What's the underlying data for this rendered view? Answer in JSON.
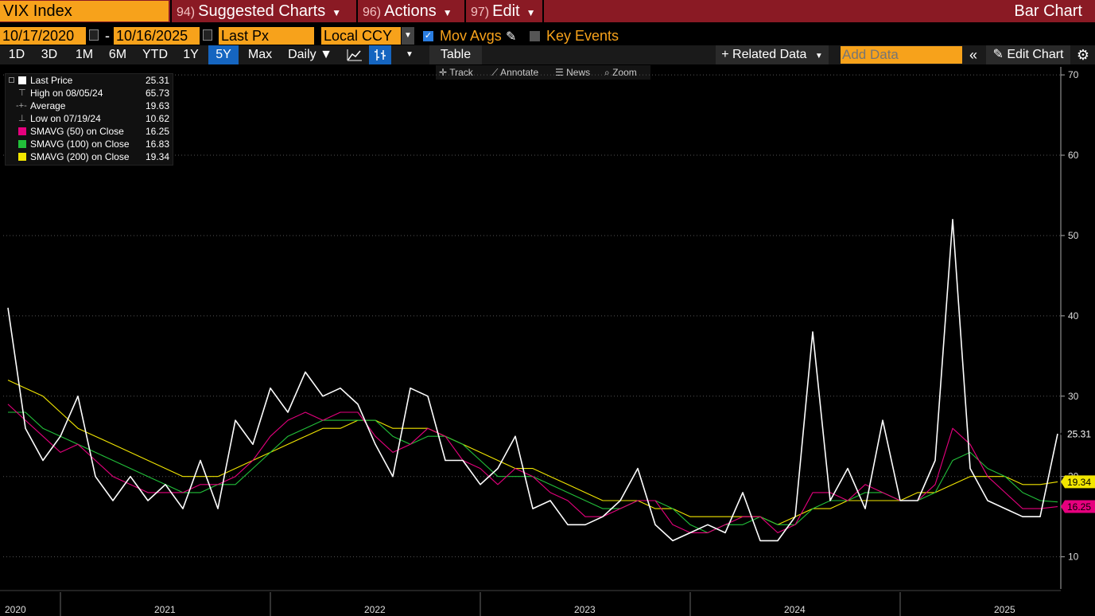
{
  "topbar": {
    "security": "VIX Index",
    "menus": [
      {
        "num": "94)",
        "label": "Suggested Charts"
      },
      {
        "num": "96)",
        "label": "Actions"
      },
      {
        "num": "97)",
        "label": "Edit"
      }
    ],
    "title": "Bar Chart"
  },
  "controls": {
    "start_date": "10/17/2020",
    "dash": "-",
    "end_date": "10/16/2025",
    "field": "Last Px",
    "currency": "Local CCY",
    "mov_avgs_label": "Mov Avgs",
    "key_events_label": "Key Events"
  },
  "toolbar": {
    "periods": [
      "1D",
      "3D",
      "1M",
      "6M",
      "YTD",
      "1Y",
      "5Y",
      "Max"
    ],
    "selected_period": "5Y",
    "frequency": "Daily ▼",
    "table_label": "Table",
    "related_data_label": "+ Related Data",
    "add_data_placeholder": "Add Data",
    "edit_chart_label": "Edit Chart"
  },
  "tools": [
    "Track",
    "Annotate",
    "News",
    "Zoom"
  ],
  "legend": [
    {
      "label": "Last Price",
      "value": "25.31",
      "color": "#ffffff"
    },
    {
      "label": "High on 08/05/24",
      "value": "65.73",
      "glyph": "⊤"
    },
    {
      "label": "Average",
      "value": "19.63",
      "glyph": "-+-"
    },
    {
      "label": "Low on 07/19/24",
      "value": "10.62",
      "glyph": "⊥"
    },
    {
      "label": "SMAVG (50)  on Close",
      "value": "16.25",
      "color": "#e6007e"
    },
    {
      "label": "SMAVG (100)  on Close",
      "value": "16.83",
      "color": "#22c03a"
    },
    {
      "label": "SMAVG (200)  on Close",
      "value": "19.34",
      "color": "#f2e600"
    }
  ],
  "chart_data": {
    "type": "line",
    "ylim": [
      6,
      71
    ],
    "yticks": [
      10,
      20,
      30,
      40,
      50,
      60,
      70
    ],
    "x_labels": [
      "2020",
      "2021",
      "2022",
      "2023",
      "2024",
      "2025"
    ],
    "last_value_tags": [
      {
        "value": 25.31,
        "label": "25.31",
        "color": "#ffffff"
      },
      {
        "value": 19.34,
        "label": "19.34",
        "color": "#f2e600"
      },
      {
        "value": 16.25,
        "label": "16.25",
        "color": "#e6007e"
      }
    ],
    "x": [
      "2020-10",
      "2020-11",
      "2020-12",
      "2021-01",
      "2021-02",
      "2021-03",
      "2021-04",
      "2021-05",
      "2021-06",
      "2021-07",
      "2021-08",
      "2021-09",
      "2021-10",
      "2021-11",
      "2021-12",
      "2022-01",
      "2022-02",
      "2022-03",
      "2022-04",
      "2022-05",
      "2022-06",
      "2022-07",
      "2022-08",
      "2022-09",
      "2022-10",
      "2022-11",
      "2022-12",
      "2023-01",
      "2023-02",
      "2023-03",
      "2023-04",
      "2023-05",
      "2023-06",
      "2023-07",
      "2023-08",
      "2023-09",
      "2023-10",
      "2023-11",
      "2023-12",
      "2024-01",
      "2024-02",
      "2024-03",
      "2024-04",
      "2024-05",
      "2024-06",
      "2024-07",
      "2024-08",
      "2024-09",
      "2024-10",
      "2024-11",
      "2024-12",
      "2025-01",
      "2025-02",
      "2025-03",
      "2025-04",
      "2025-05",
      "2025-06",
      "2025-07",
      "2025-08",
      "2025-09",
      "2025-10"
    ],
    "series": [
      {
        "name": "Last Price",
        "color": "#ffffff",
        "values": [
          41,
          26,
          22,
          25,
          30,
          20,
          17,
          20,
          17,
          19,
          16,
          22,
          16,
          27,
          24,
          31,
          28,
          33,
          30,
          31,
          29,
          24,
          20,
          31,
          30,
          22,
          22,
          19,
          21,
          25,
          16,
          17,
          14,
          14,
          15,
          17,
          21,
          14,
          12,
          13,
          14,
          13,
          18,
          12,
          12,
          15,
          38,
          17,
          21,
          16,
          27,
          17,
          17,
          22,
          52,
          21,
          17,
          16,
          15,
          15,
          25.31
        ]
      },
      {
        "name": "SMAVG (50)  on Close",
        "color": "#e6007e",
        "values": [
          29,
          27,
          25,
          23,
          24,
          22,
          20,
          19,
          18,
          18,
          18,
          19,
          19,
          20,
          22,
          25,
          27,
          28,
          27,
          28,
          28,
          25,
          23,
          24,
          26,
          25,
          22,
          21,
          19,
          21,
          20,
          18,
          17,
          15,
          15,
          16,
          17,
          17,
          14,
          13,
          13,
          14,
          15,
          15,
          13,
          14,
          18,
          18,
          17,
          19,
          18,
          17,
          17,
          19,
          26,
          24,
          20,
          18,
          16,
          16,
          16.25
        ]
      },
      {
        "name": "SMAVG (100)  on Close",
        "color": "#22c03a",
        "values": [
          28,
          28,
          26,
          25,
          24,
          23,
          22,
          21,
          20,
          19,
          18,
          18,
          19,
          19,
          21,
          23,
          25,
          26,
          27,
          27,
          27,
          27,
          25,
          24,
          25,
          25,
          24,
          22,
          20,
          20,
          20,
          19,
          18,
          17,
          16,
          16,
          17,
          17,
          16,
          14,
          13,
          14,
          14,
          15,
          14,
          14,
          16,
          17,
          17,
          18,
          18,
          17,
          17,
          18,
          22,
          23,
          21,
          20,
          18,
          17,
          16.83
        ]
      },
      {
        "name": "SMAVG (200)  on Close",
        "color": "#f2e600",
        "values": [
          32,
          31,
          30,
          28,
          26,
          25,
          24,
          23,
          22,
          21,
          20,
          20,
          20,
          21,
          22,
          23,
          24,
          25,
          26,
          26,
          27,
          27,
          26,
          26,
          26,
          25,
          24,
          23,
          22,
          21,
          21,
          20,
          19,
          18,
          17,
          17,
          17,
          16,
          16,
          15,
          15,
          15,
          15,
          15,
          14,
          15,
          16,
          16,
          17,
          17,
          17,
          17,
          18,
          18,
          19,
          20,
          20,
          20,
          19,
          19,
          19.34
        ]
      }
    ]
  }
}
